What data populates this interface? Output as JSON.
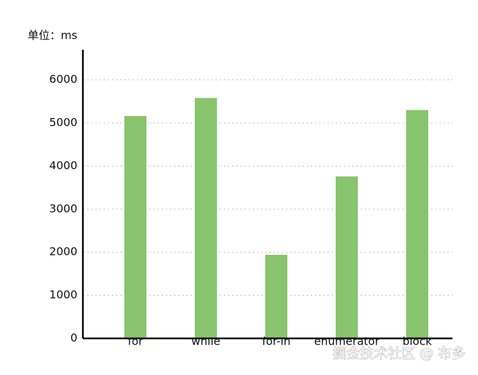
{
  "chart_data": {
    "type": "bar",
    "unit_label": "单位：ms",
    "categories": [
      "for",
      "while",
      "for-in",
      "enumerator",
      "block"
    ],
    "values": [
      5160,
      5580,
      1940,
      3760,
      5300
    ],
    "color": "#88c46d",
    "ylim": [
      0,
      6700
    ],
    "yticks": [
      0,
      1000,
      2000,
      3000,
      4000,
      5000,
      6000
    ],
    "grid": true
  },
  "watermark": "掘金技术社区 @ 布多"
}
